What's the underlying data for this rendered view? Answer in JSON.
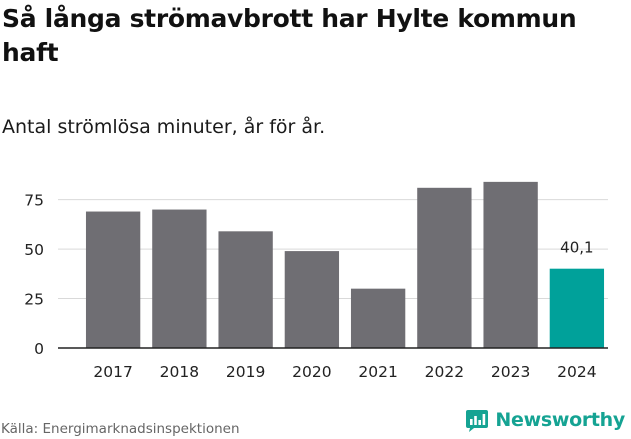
{
  "title": "Så långa strömavbrott har Hylte kommun haft",
  "subtitle": "Antal strömlösa minuter, år för år.",
  "source": "Källa: Energimarknadsinspektionen",
  "brand": {
    "name": "Newsworthy",
    "icon": "newsworthy-logo-icon"
  },
  "colors": {
    "bar": "#6f6e73",
    "highlight": "#00a19a",
    "grid": "#d9d9d9",
    "axis": "#222222",
    "brand": "#15a393"
  },
  "chart_data": {
    "type": "bar",
    "title": "Så långa strömavbrott har Hylte kommun haft",
    "subtitle": "Antal strömlösa minuter, år för år.",
    "xlabel": "",
    "ylabel": "",
    "categories": [
      "2017",
      "2018",
      "2019",
      "2020",
      "2021",
      "2022",
      "2023",
      "2024"
    ],
    "values": [
      69,
      70,
      59,
      49,
      30,
      81,
      84,
      40.1
    ],
    "highlight_index": 7,
    "data_labels": [
      {
        "index": 7,
        "text": "40,1"
      }
    ],
    "ylim": [
      0,
      90
    ],
    "yticks": [
      0,
      25,
      50,
      75
    ],
    "ytick_labels": [
      "0",
      "25",
      "50",
      "75"
    ],
    "grid": true,
    "legend": "none"
  }
}
